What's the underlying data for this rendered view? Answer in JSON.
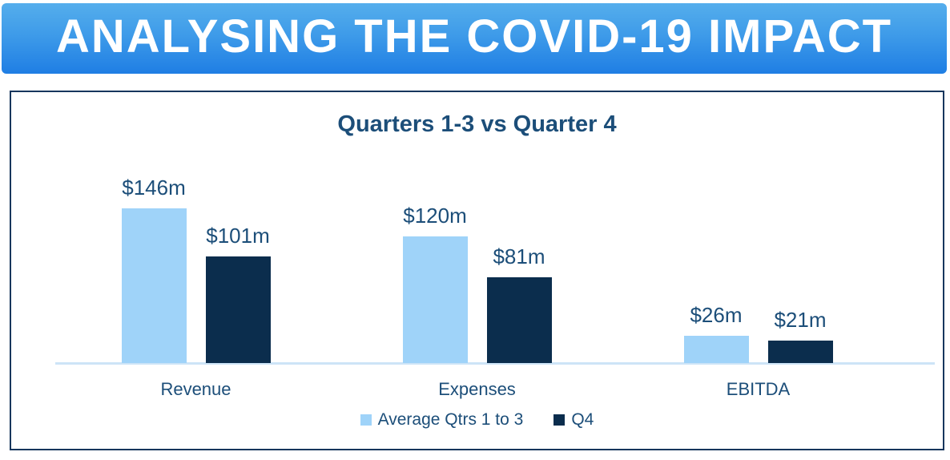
{
  "banner": {
    "title": "ANALYSING THE COVID-19 IMPACT"
  },
  "chart_data": {
    "type": "bar",
    "title": "Quarters 1-3 vs Quarter 4",
    "categories": [
      "Revenue",
      "Expenses",
      "EBITDA"
    ],
    "series": [
      {
        "name": "Average Qtrs 1 to 3",
        "color": "#9FD3F9",
        "values": [
          146,
          120,
          26
        ],
        "labels": [
          "$146m",
          "$120m",
          "$26m"
        ]
      },
      {
        "name": "Q4",
        "color": "#0B2D4D",
        "values": [
          101,
          81,
          21
        ],
        "labels": [
          "$101m",
          "$81m",
          "$21m"
        ]
      }
    ],
    "unit": "$m",
    "ylim": [
      0,
      150
    ],
    "grid": false,
    "legend_position": "bottom",
    "axis_line_color": "#CDE4F7",
    "text_color": "#1C4E79"
  }
}
